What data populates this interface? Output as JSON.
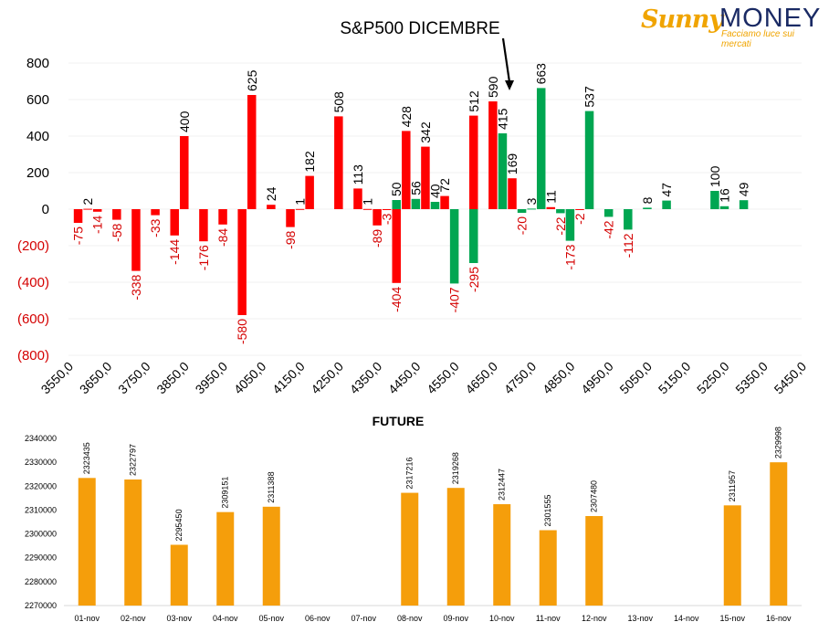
{
  "logo": {
    "brand_part1": "Sunny",
    "brand_part2": "MONEY",
    "tagline": "Facciamo luce sui mercati"
  },
  "colors": {
    "positive": "#00a651",
    "negative": "#ff0000",
    "future_bar": "#f59e0b",
    "axis_text": "#000000",
    "negative_label": "#d40000"
  },
  "chart_data": [
    {
      "type": "bar",
      "title": "S&P500 DICEMBRE",
      "annotation": "arrow pointing to the 4700 strike",
      "x_tick_labels": [
        "3550,0",
        "3650,0",
        "3750,0",
        "3850,0",
        "3950,0",
        "4050,0",
        "4150,0",
        "4250,0",
        "4350,0",
        "4450,0",
        "4550,0",
        "4650,0",
        "4750,0",
        "4850,0",
        "4950,0",
        "5050,0",
        "5150,0",
        "5250,0",
        "5350,0",
        "5450,0"
      ],
      "y_tick_labels": [
        "800",
        "600",
        "400",
        "200",
        "0",
        "(200)",
        "(400)",
        "(600)",
        "(800)"
      ],
      "ylim": [
        -800,
        800
      ],
      "xlim": [
        3550,
        5450
      ],
      "series": [
        {
          "color": "red",
          "points": [
            {
              "x": 3575,
              "y": -75
            },
            {
              "x": 3600,
              "y": 2
            },
            {
              "x": 3625,
              "y": -14
            },
            {
              "x": 3675,
              "y": -58
            },
            {
              "x": 3725,
              "y": -338
            },
            {
              "x": 3775,
              "y": -33
            },
            {
              "x": 3825,
              "y": -144
            },
            {
              "x": 3850,
              "y": 400
            },
            {
              "x": 3900,
              "y": -176
            },
            {
              "x": 3950,
              "y": -84
            },
            {
              "x": 4000,
              "y": -580
            },
            {
              "x": 4025,
              "y": 625
            },
            {
              "x": 4075,
              "y": 24
            },
            {
              "x": 4125,
              "y": -98
            },
            {
              "x": 4150,
              "y": 1
            },
            {
              "x": 4175,
              "y": 182
            },
            {
              "x": 4250,
              "y": 508
            },
            {
              "x": 4300,
              "y": 113
            },
            {
              "x": 4325,
              "y": 1
            },
            {
              "x": 4350,
              "y": -89
            },
            {
              "x": 4375,
              "y": -3
            },
            {
              "x": 4400,
              "y": -404
            },
            {
              "x": 4425,
              "y": 428
            },
            {
              "x": 4475,
              "y": 342
            },
            {
              "x": 4525,
              "y": 72
            },
            {
              "x": 4600,
              "y": 512
            },
            {
              "x": 4650,
              "y": 590
            },
            {
              "x": 4700,
              "y": 169
            },
            {
              "x": 4800,
              "y": 11
            },
            {
              "x": 4875,
              "y": -2
            }
          ]
        },
        {
          "color": "green",
          "points": [
            {
              "x": 4400,
              "y": 50
            },
            {
              "x": 4450,
              "y": 56
            },
            {
              "x": 4500,
              "y": 40
            },
            {
              "x": 4550,
              "y": -407
            },
            {
              "x": 4600,
              "y": -295
            },
            {
              "x": 4675,
              "y": 415
            },
            {
              "x": 4725,
              "y": -20
            },
            {
              "x": 4750,
              "y": 3
            },
            {
              "x": 4775,
              "y": 663
            },
            {
              "x": 4825,
              "y": -22
            },
            {
              "x": 4850,
              "y": -173
            },
            {
              "x": 4900,
              "y": 537
            },
            {
              "x": 4950,
              "y": -42
            },
            {
              "x": 5000,
              "y": -112
            },
            {
              "x": 5050,
              "y": 8
            },
            {
              "x": 5100,
              "y": 47
            },
            {
              "x": 5225,
              "y": 100
            },
            {
              "x": 5250,
              "y": 16
            },
            {
              "x": 5300,
              "y": 49
            }
          ]
        }
      ]
    },
    {
      "type": "bar",
      "title": "FUTURE",
      "categories": [
        "01-nov",
        "02-nov",
        "03-nov",
        "04-nov",
        "05-nov",
        "06-nov",
        "07-nov",
        "08-nov",
        "09-nov",
        "10-nov",
        "11-nov",
        "12-nov",
        "13-nov",
        "14-nov",
        "15-nov",
        "16-nov"
      ],
      "values": [
        2323435,
        2322797,
        2295450,
        2309151,
        2311388,
        null,
        null,
        2317216,
        2319268,
        2312447,
        2301555,
        2307480,
        null,
        null,
        2311957,
        2329998
      ],
      "y_tick_labels": [
        "2340000",
        "2330000",
        "2320000",
        "2310000",
        "2300000",
        "2290000",
        "2280000",
        "2270000"
      ],
      "ylim": [
        2270000,
        2340000
      ]
    }
  ]
}
